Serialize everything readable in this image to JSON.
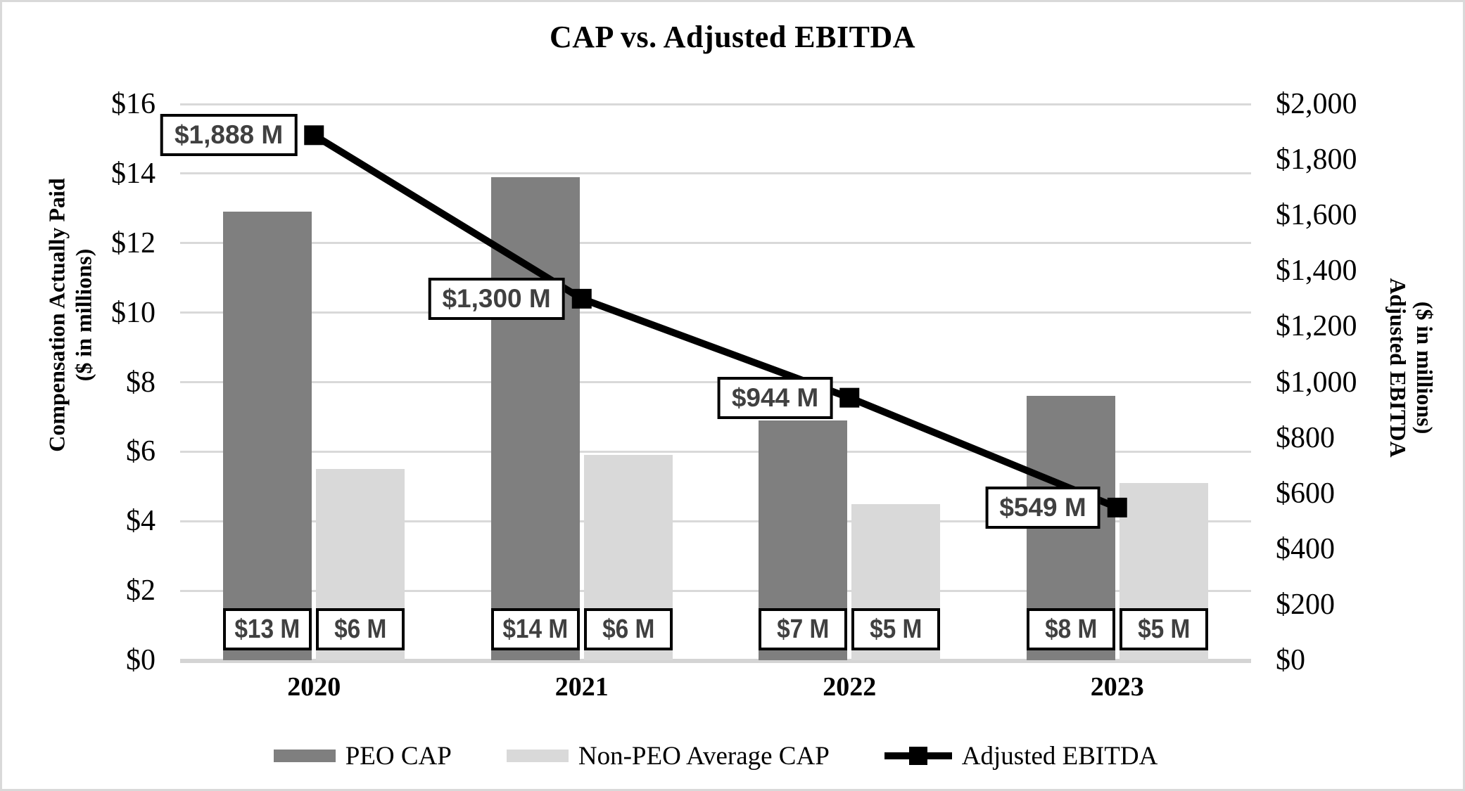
{
  "title": "CAP vs. Adjusted EBITDA",
  "left_axis": {
    "title_lines": [
      "Compensation Actually Paid",
      "($ in millions)"
    ],
    "ticks": [
      "$16",
      "$14",
      "$12",
      "$10",
      "$8",
      "$6",
      "$4",
      "$2",
      "$0"
    ]
  },
  "right_axis": {
    "title_lines": [
      "Adjusted EBITDA",
      "($ in millions)"
    ],
    "ticks": [
      "$2,000",
      "$1,800",
      "$1,600",
      "$1,400",
      "$1,200",
      "$1,000",
      "$800",
      "$600",
      "$400",
      "$200",
      "$0"
    ]
  },
  "x_axis": {
    "categories": [
      "2020",
      "2021",
      "2022",
      "2023"
    ]
  },
  "legend": [
    {
      "label": "PEO CAP",
      "swatch": "bar",
      "color": "#7f7f7f"
    },
    {
      "label": "Non-PEO Average CAP",
      "swatch": "bar",
      "color": "#d9d9d9"
    },
    {
      "label": "Adjusted EBITDA",
      "swatch": "line",
      "color": "#000000"
    }
  ],
  "colors": {
    "peo_bar": "#7f7f7f",
    "non_peo_bar": "#d9d9d9",
    "line": "#000000",
    "gridline": "#d9d9d9",
    "label_text": "#404040",
    "label_border": "#000000"
  },
  "chart_data": {
    "type": "combo",
    "categories": [
      "2020",
      "2021",
      "2022",
      "2023"
    ],
    "series": [
      {
        "name": "PEO CAP",
        "type": "bar",
        "axis": "left",
        "color": "#7f7f7f",
        "values": [
          12.9,
          13.9,
          6.9,
          7.6
        ],
        "data_labels": [
          "$13 M",
          "$14 M",
          "$7 M",
          "$8 M"
        ]
      },
      {
        "name": "Non-PEO Average CAP",
        "type": "bar",
        "axis": "left",
        "color": "#d9d9d9",
        "values": [
          5.5,
          5.9,
          4.5,
          5.1
        ],
        "data_labels": [
          "$6 M",
          "$6 M",
          "$5 M",
          "$5 M"
        ]
      },
      {
        "name": "Adjusted EBITDA",
        "type": "line",
        "axis": "right",
        "color": "#000000",
        "marker": "square",
        "values": [
          1888,
          1300,
          944,
          549
        ],
        "data_labels": [
          "$1,888 M",
          "$1,300 M",
          "$944 M",
          "$549 M"
        ]
      }
    ],
    "title": "CAP vs. Adjusted EBITDA",
    "left_axis": {
      "label": "Compensation Actually Paid ($ in millions)",
      "min": 0,
      "max": 16,
      "step": 2
    },
    "right_axis": {
      "label": "Adjusted EBITDA ($ in millions)",
      "min": 0,
      "max": 2000,
      "step": 200
    },
    "grid": true,
    "legend_position": "bottom"
  }
}
